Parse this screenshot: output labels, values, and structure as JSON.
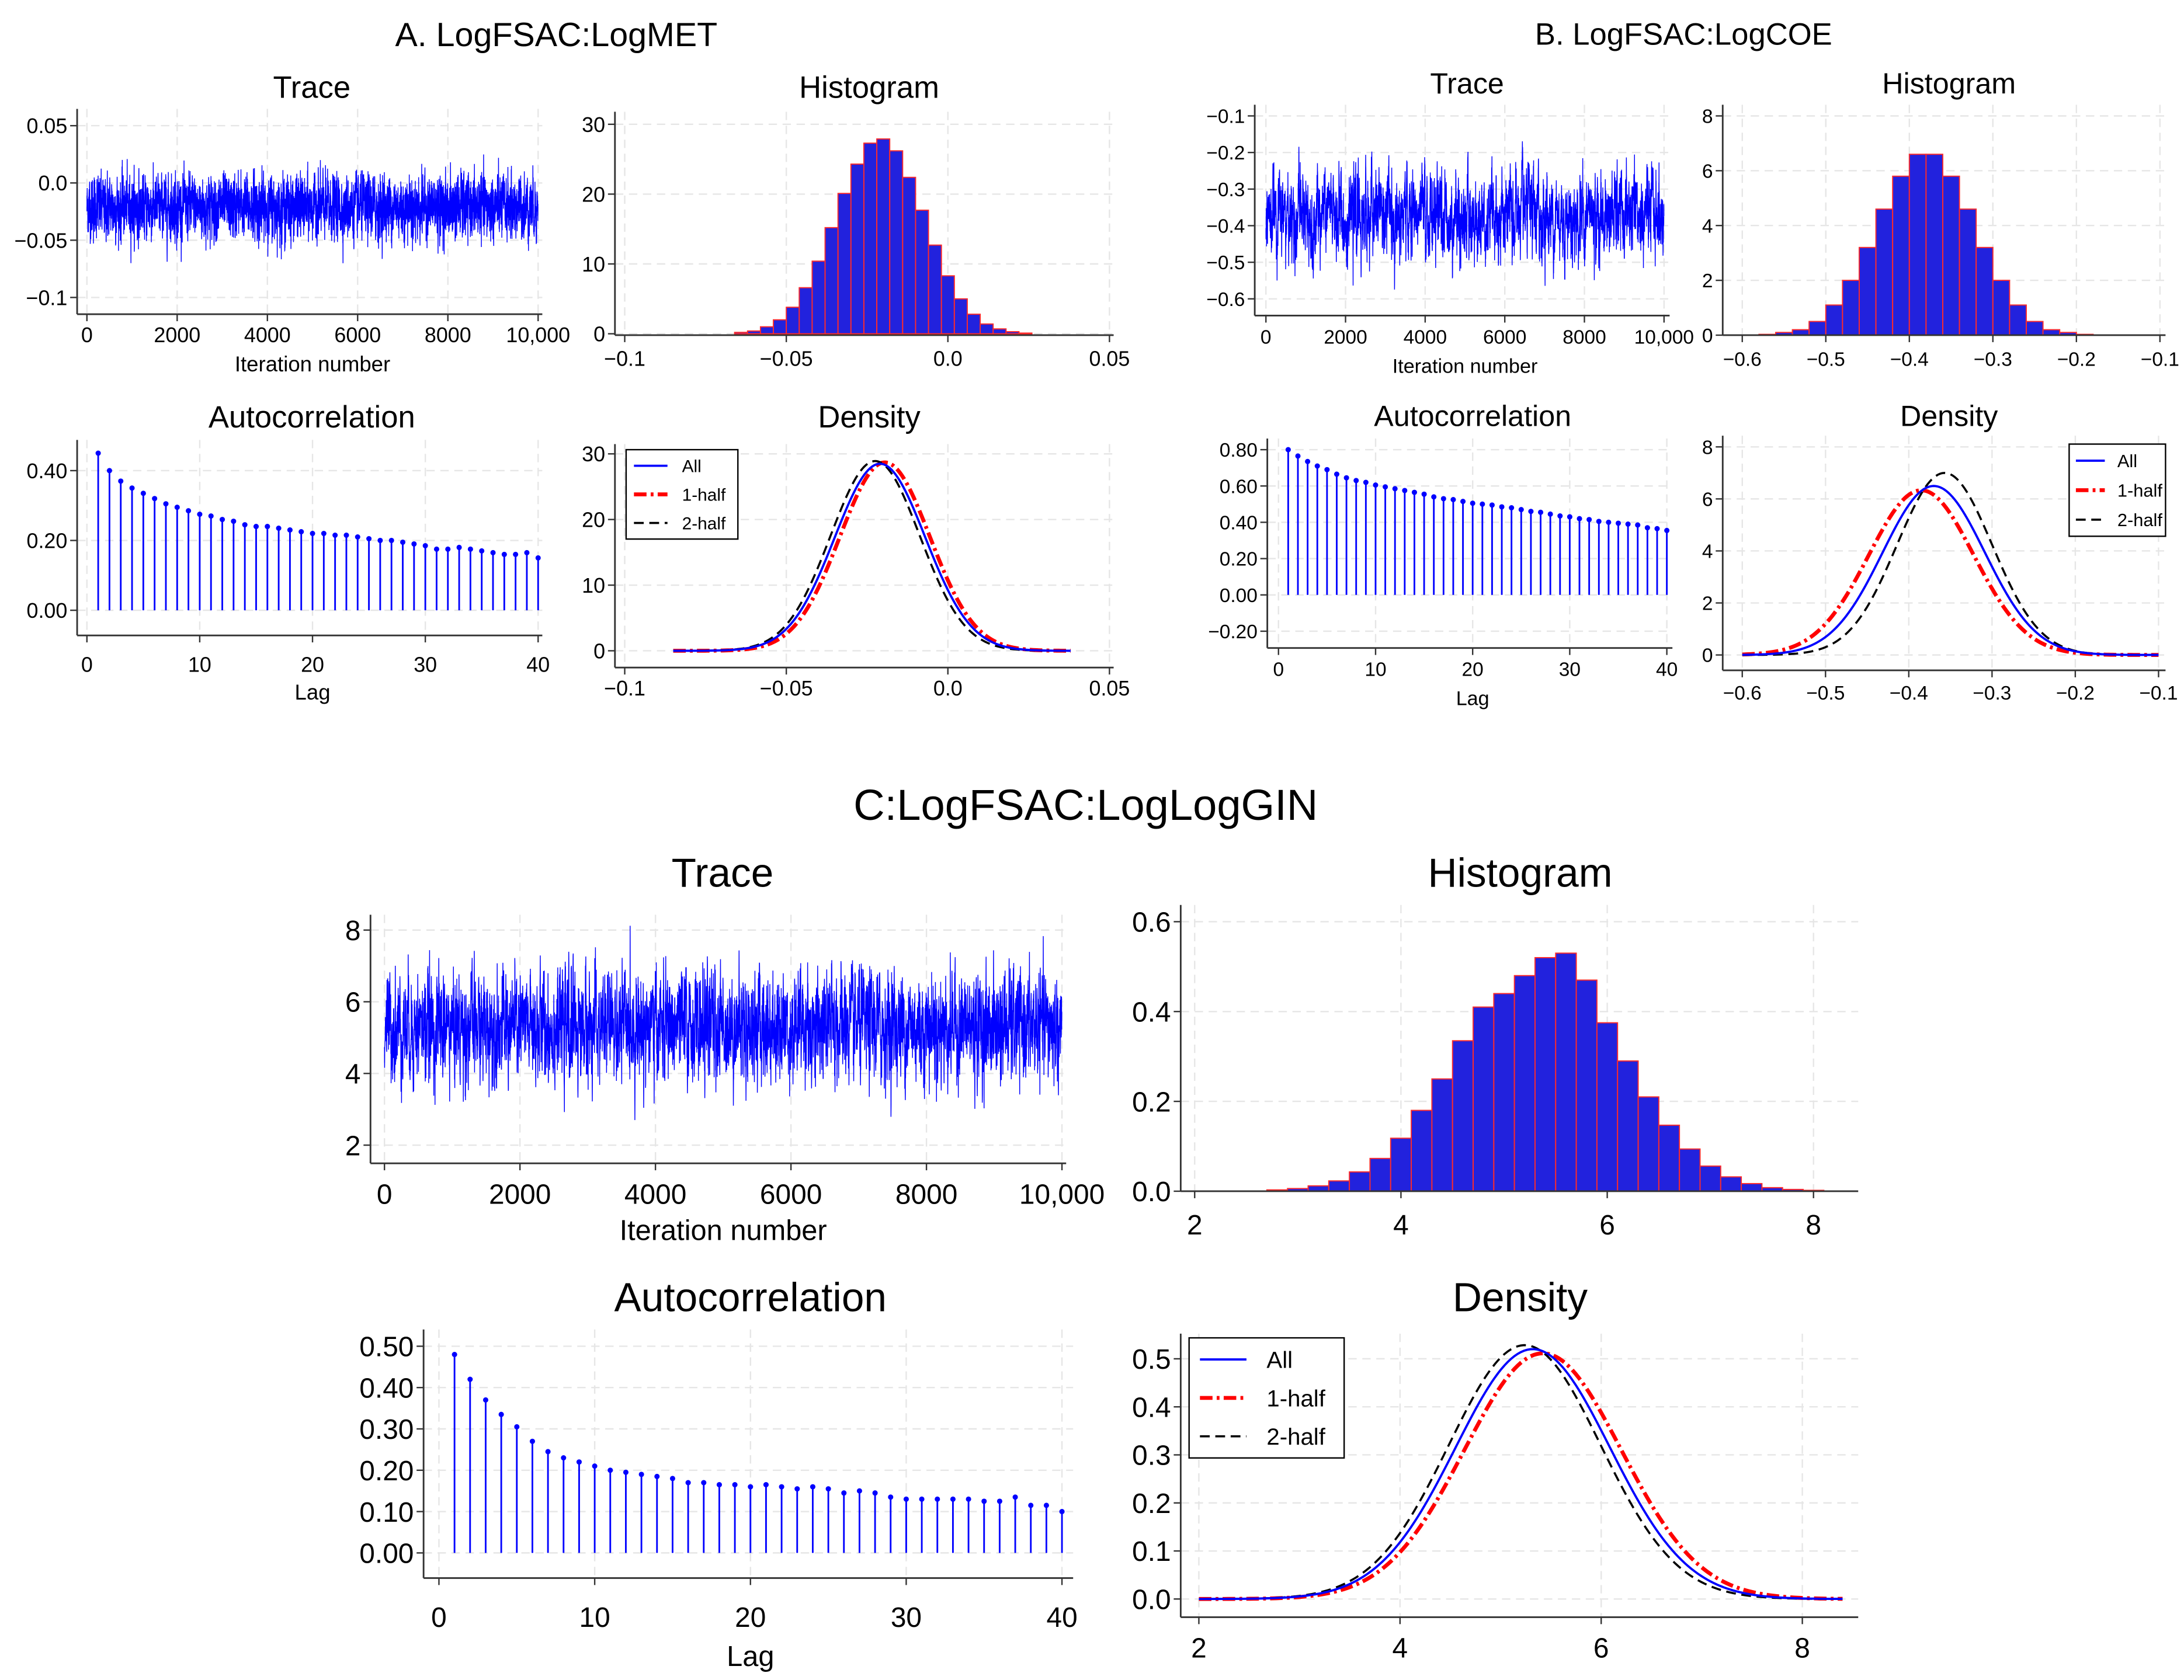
{
  "groups": [
    {
      "title": "A. LogFSAC:LogMET"
    },
    {
      "title": "B. LogFSAC:LogCOE"
    },
    {
      "title": "C:LogFSAC:LogLogGIN"
    }
  ],
  "colors": {
    "series_all": "#0000ff",
    "series_half1": "#ff0000",
    "series_half2": "#000000",
    "bar_fill": "#2222dd",
    "bar_edge": "#ff2a2a",
    "grid": "#e6e6e6"
  },
  "chart_data": [
    {
      "group": 0,
      "type": "line",
      "title": "Trace",
      "xlabel": "Iteration number",
      "ylabel": "",
      "xlim": [
        0,
        10000
      ],
      "ylim": [
        -0.1,
        0.05
      ],
      "xticks": [
        "0",
        "2000",
        "4000",
        "6000",
        "8000",
        "10,000"
      ],
      "yticks": [
        "−0.1",
        "−0.05",
        "0.0",
        "0.05"
      ],
      "n_iterations": 10000,
      "mean": -0.021,
      "sd": 0.0135,
      "ar1": 0.45
    },
    {
      "group": 0,
      "type": "bar",
      "title": "Histogram",
      "xlim": [
        -0.1,
        0.05
      ],
      "ylim": [
        0,
        30
      ],
      "xticks": [
        "−0.1",
        "−0.05",
        "0.0",
        "0.05"
      ],
      "yticks": [
        "0",
        "10",
        "20",
        "30"
      ],
      "bin_start": -0.066,
      "bin_width": 0.004,
      "values": [
        0.2,
        0.4,
        1.0,
        2.0,
        3.8,
        6.6,
        10.4,
        15.2,
        20.1,
        24.3,
        27.3,
        27.9,
        26.2,
        22.4,
        17.7,
        12.7,
        8.3,
        5.0,
        2.8,
        1.4,
        0.7,
        0.3,
        0.1
      ]
    },
    {
      "group": 0,
      "type": "bar",
      "title": "Autocorrelation",
      "xlabel": "Lag",
      "xlim": [
        0,
        40
      ],
      "ylim": [
        0,
        0.4
      ],
      "xticks": [
        "0",
        "10",
        "20",
        "30",
        "40"
      ],
      "yticks": [
        "0.00",
        "0.20",
        "0.40"
      ],
      "values": [
        0.45,
        0.4,
        0.37,
        0.35,
        0.335,
        0.32,
        0.305,
        0.295,
        0.285,
        0.275,
        0.27,
        0.26,
        0.255,
        0.245,
        0.24,
        0.24,
        0.235,
        0.23,
        0.225,
        0.22,
        0.22,
        0.215,
        0.215,
        0.21,
        0.205,
        0.2,
        0.2,
        0.195,
        0.19,
        0.185,
        0.175,
        0.175,
        0.18,
        0.175,
        0.17,
        0.165,
        0.16,
        0.16,
        0.165,
        0.15
      ]
    },
    {
      "group": 0,
      "type": "line",
      "title": "Density",
      "xlim": [
        -0.1,
        0.05
      ],
      "ylim": [
        0,
        30
      ],
      "curve_range": [
        -0.085,
        0.038
      ],
      "xticks": [
        "−0.1",
        "−0.05",
        "0.0",
        "0.05"
      ],
      "yticks": [
        "0",
        "10",
        "20",
        "30"
      ],
      "legend_position": "top-left",
      "series": [
        {
          "name": "All",
          "mean": -0.021,
          "sd": 0.014
        },
        {
          "name": "1-half",
          "mean": -0.0195,
          "sd": 0.0139
        },
        {
          "name": "2-half",
          "mean": -0.0225,
          "sd": 0.0138
        }
      ]
    },
    {
      "group": 1,
      "type": "line",
      "title": "Trace",
      "xlabel": "Iteration number",
      "xlim": [
        0,
        10000
      ],
      "ylim": [
        -0.6,
        -0.1
      ],
      "xticks": [
        "0",
        "2000",
        "4000",
        "6000",
        "8000",
        "10,000"
      ],
      "yticks": [
        "−0.6",
        "−0.5",
        "−0.4",
        "−0.3",
        "−0.2",
        "−0.1"
      ],
      "n_iterations": 10000,
      "mean": -0.375,
      "sd": 0.06,
      "ar1": 0.8
    },
    {
      "group": 1,
      "type": "bar",
      "title": "Histogram",
      "xlim": [
        -0.6,
        -0.1
      ],
      "ylim": [
        0,
        8
      ],
      "xticks": [
        "−0.6",
        "−0.5",
        "−0.4",
        "−0.3",
        "−0.2",
        "−0.1"
      ],
      "yticks": [
        "0",
        "2",
        "4",
        "6",
        "8"
      ],
      "bin_start": -0.58,
      "bin_width": 0.02,
      "values": [
        0.03,
        0.1,
        0.2,
        0.5,
        1.1,
        2.0,
        3.2,
        4.6,
        5.8,
        6.6,
        6.6,
        5.8,
        4.6,
        3.2,
        2.0,
        1.1,
        0.5,
        0.2,
        0.1,
        0.03
      ]
    },
    {
      "group": 1,
      "type": "bar",
      "title": "Autocorrelation",
      "xlabel": "Lag",
      "xlim": [
        0,
        40
      ],
      "ylim": [
        -0.2,
        0.8
      ],
      "xticks": [
        "0",
        "10",
        "20",
        "30",
        "40"
      ],
      "yticks": [
        "−0.20",
        "0.00",
        "0.20",
        "0.40",
        "0.60",
        "0.80"
      ],
      "values": [
        0.8,
        0.765,
        0.735,
        0.71,
        0.69,
        0.665,
        0.645,
        0.63,
        0.62,
        0.605,
        0.595,
        0.585,
        0.575,
        0.565,
        0.555,
        0.54,
        0.53,
        0.525,
        0.515,
        0.505,
        0.5,
        0.495,
        0.485,
        0.48,
        0.47,
        0.46,
        0.455,
        0.445,
        0.435,
        0.43,
        0.42,
        0.415,
        0.405,
        0.4,
        0.395,
        0.39,
        0.385,
        0.37,
        0.365,
        0.355
      ]
    },
    {
      "group": 1,
      "type": "line",
      "title": "Density",
      "xlim": [
        -0.6,
        -0.1
      ],
      "ylim": [
        0,
        8
      ],
      "curve_range": [
        -0.6,
        -0.1
      ],
      "xticks": [
        "−0.6",
        "−0.5",
        "−0.4",
        "−0.3",
        "−0.2",
        "−0.1"
      ],
      "yticks": [
        "0",
        "2",
        "4",
        "6",
        "8"
      ],
      "legend_position": "top-right",
      "series": [
        {
          "name": "All",
          "mean": -0.37,
          "sd": 0.0614
        },
        {
          "name": "1-half",
          "mean": -0.385,
          "sd": 0.063
        },
        {
          "name": "2-half",
          "mean": -0.357,
          "sd": 0.057
        }
      ]
    },
    {
      "group": 2,
      "type": "line",
      "title": "Trace",
      "xlabel": "Iteration number",
      "xlim": [
        0,
        10000
      ],
      "ylim": [
        2,
        8
      ],
      "xticks": [
        "0",
        "2000",
        "4000",
        "6000",
        "8000",
        "10,000"
      ],
      "yticks": [
        "2",
        "4",
        "6",
        "8"
      ],
      "n_iterations": 10000,
      "mean": 5.3,
      "sd": 0.75,
      "ar1": 0.48
    },
    {
      "group": 2,
      "type": "bar",
      "title": "Histogram",
      "xlim": [
        2,
        8
      ],
      "ylim": [
        0,
        0.6
      ],
      "xticks": [
        "2",
        "4",
        "6",
        "8"
      ],
      "yticks": [
        "0.0",
        "0.2",
        "0.4",
        "0.6"
      ],
      "bin_start": 2.7,
      "bin_width": 0.2,
      "values": [
        0.003,
        0.006,
        0.012,
        0.023,
        0.043,
        0.073,
        0.118,
        0.18,
        0.25,
        0.335,
        0.41,
        0.44,
        0.48,
        0.52,
        0.53,
        0.47,
        0.375,
        0.29,
        0.21,
        0.147,
        0.094,
        0.056,
        0.032,
        0.017,
        0.008,
        0.004,
        0.002
      ]
    },
    {
      "group": 2,
      "type": "bar",
      "title": "Autocorrelation",
      "xlabel": "Lag",
      "xlim": [
        0,
        40
      ],
      "ylim": [
        0,
        0.5
      ],
      "xticks": [
        "0",
        "10",
        "20",
        "30",
        "40"
      ],
      "yticks": [
        "0.00",
        "0.10",
        "0.20",
        "0.30",
        "0.40",
        "0.50"
      ],
      "values": [
        0.48,
        0.42,
        0.37,
        0.335,
        0.305,
        0.27,
        0.245,
        0.23,
        0.22,
        0.21,
        0.2,
        0.195,
        0.19,
        0.185,
        0.18,
        0.17,
        0.17,
        0.165,
        0.165,
        0.16,
        0.165,
        0.16,
        0.155,
        0.16,
        0.155,
        0.145,
        0.15,
        0.145,
        0.135,
        0.13,
        0.13,
        0.13,
        0.13,
        0.13,
        0.125,
        0.125,
        0.135,
        0.115,
        0.115,
        0.1
      ]
    },
    {
      "group": 2,
      "type": "line",
      "title": "Density",
      "xlim": [
        2,
        8
      ],
      "ylim": [
        0,
        0.5
      ],
      "curve_range": [
        2,
        8.4
      ],
      "xticks": [
        "2",
        "4",
        "6",
        "8"
      ],
      "yticks": [
        "0.0",
        "0.1",
        "0.2",
        "0.3",
        "0.4",
        "0.5"
      ],
      "legend_position": "top-left",
      "series": [
        {
          "name": "All",
          "mean": 5.32,
          "sd": 0.767
        },
        {
          "name": "1-half",
          "mean": 5.42,
          "sd": 0.78
        },
        {
          "name": "2-half",
          "mean": 5.24,
          "sd": 0.755
        }
      ]
    }
  ]
}
